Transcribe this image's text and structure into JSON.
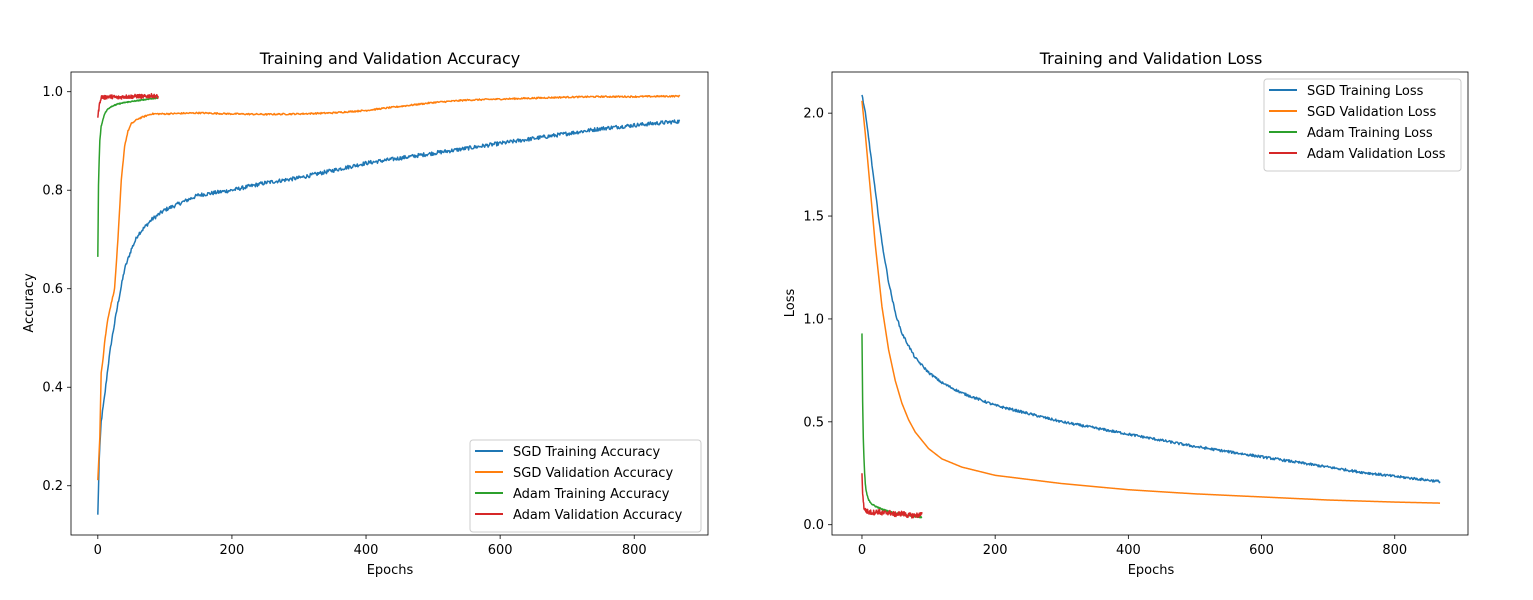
{
  "colors": {
    "sgd_train": "#1f77b4",
    "sgd_val": "#ff7f0e",
    "adam_train": "#2ca02c",
    "adam_val": "#d62728"
  },
  "chart_data": [
    {
      "type": "line",
      "title": "Training and Validation Accuracy",
      "xlabel": "Epochs",
      "ylabel": "Accuracy",
      "xlim": [
        -40,
        910
      ],
      "ylim": [
        0.1,
        1.04
      ],
      "xticks": [
        0,
        200,
        400,
        600,
        800
      ],
      "yticks": [
        0.2,
        0.4,
        0.6,
        0.8,
        1.0
      ],
      "xtick_labels": [
        "0",
        "200",
        "400",
        "600",
        "800"
      ],
      "ytick_labels": [
        "0.2",
        "0.4",
        "0.6",
        "0.8",
        "1.0"
      ],
      "grid": false,
      "legend_position": "lower-right",
      "series": [
        {
          "name": "SGD Training Accuracy",
          "color": "#1f77b4",
          "x": [
            0,
            2,
            5,
            10,
            15,
            20,
            30,
            40,
            50,
            60,
            80,
            100,
            150,
            200,
            250,
            300,
            350,
            400,
            450,
            500,
            550,
            600,
            650,
            700,
            750,
            800,
            868
          ],
          "y": [
            0.14,
            0.25,
            0.33,
            0.38,
            0.44,
            0.49,
            0.57,
            0.64,
            0.68,
            0.71,
            0.74,
            0.76,
            0.79,
            0.8,
            0.815,
            0.825,
            0.84,
            0.855,
            0.865,
            0.875,
            0.885,
            0.895,
            0.905,
            0.915,
            0.925,
            0.932,
            0.94
          ],
          "noise": 0.004
        },
        {
          "name": "SGD Validation Accuracy",
          "color": "#ff7f0e",
          "x": [
            0,
            3,
            5,
            8,
            10,
            15,
            20,
            25,
            30,
            35,
            40,
            45,
            50,
            60,
            70,
            80,
            100,
            150,
            200,
            250,
            300,
            350,
            400,
            450,
            500,
            550,
            600,
            650,
            700,
            750,
            800,
            868
          ],
          "y": [
            0.21,
            0.3,
            0.43,
            0.46,
            0.49,
            0.54,
            0.57,
            0.6,
            0.7,
            0.82,
            0.89,
            0.92,
            0.935,
            0.945,
            0.95,
            0.955,
            0.955,
            0.957,
            0.955,
            0.954,
            0.955,
            0.957,
            0.962,
            0.97,
            0.978,
            0.983,
            0.985,
            0.987,
            0.989,
            0.99,
            0.99,
            0.991
          ],
          "noise": 0.0015
        },
        {
          "name": "Adam Training Accuracy",
          "color": "#2ca02c",
          "x": [
            0,
            1,
            2,
            3,
            5,
            8,
            10,
            15,
            20,
            30,
            40,
            50,
            60,
            70,
            80,
            90
          ],
          "y": [
            0.665,
            0.81,
            0.86,
            0.9,
            0.93,
            0.945,
            0.955,
            0.965,
            0.97,
            0.975,
            0.978,
            0.98,
            0.982,
            0.984,
            0.986,
            0.987
          ],
          "noise": 0.001
        },
        {
          "name": "Adam Validation Accuracy",
          "color": "#d62728",
          "x": [
            0,
            2,
            4,
            6,
            10,
            15,
            20,
            30,
            40,
            50,
            60,
            70,
            80,
            90
          ],
          "y": [
            0.948,
            0.97,
            0.985,
            0.99,
            0.988,
            0.99,
            0.99,
            0.988,
            0.99,
            0.99,
            0.991,
            0.99,
            0.992,
            0.99
          ],
          "noise": 0.004
        }
      ]
    },
    {
      "type": "line",
      "title": "Training and Validation Loss",
      "xlabel": "Epochs",
      "ylabel": "Loss",
      "xlim": [
        -45,
        910
      ],
      "ylim": [
        -0.05,
        2.2
      ],
      "xticks": [
        0,
        200,
        400,
        600,
        800
      ],
      "yticks": [
        0.0,
        0.5,
        1.0,
        1.5,
        2.0
      ],
      "xtick_labels": [
        "0",
        "200",
        "400",
        "600",
        "800"
      ],
      "ytick_labels": [
        "0.0",
        "0.5",
        "1.0",
        "1.5",
        "2.0"
      ],
      "grid": false,
      "legend_position": "upper-right",
      "series": [
        {
          "name": "SGD Training Loss",
          "color": "#1f77b4",
          "x": [
            0,
            5,
            10,
            20,
            30,
            40,
            50,
            60,
            80,
            100,
            120,
            150,
            200,
            250,
            300,
            350,
            400,
            450,
            500,
            550,
            600,
            650,
            700,
            750,
            800,
            868
          ],
          "y": [
            2.09,
            2.0,
            1.88,
            1.62,
            1.37,
            1.18,
            1.03,
            0.93,
            0.81,
            0.74,
            0.69,
            0.64,
            0.58,
            0.54,
            0.5,
            0.47,
            0.44,
            0.41,
            0.38,
            0.355,
            0.33,
            0.305,
            0.28,
            0.255,
            0.235,
            0.21
          ],
          "noise": 0.006
        },
        {
          "name": "SGD Validation Loss",
          "color": "#ff7f0e",
          "x": [
            0,
            5,
            10,
            20,
            30,
            40,
            50,
            60,
            70,
            80,
            100,
            120,
            150,
            200,
            250,
            300,
            350,
            400,
            450,
            500,
            600,
            700,
            800,
            868
          ],
          "y": [
            2.06,
            1.9,
            1.72,
            1.36,
            1.06,
            0.85,
            0.7,
            0.59,
            0.51,
            0.45,
            0.37,
            0.32,
            0.28,
            0.24,
            0.22,
            0.2,
            0.185,
            0.17,
            0.16,
            0.15,
            0.135,
            0.12,
            0.11,
            0.105
          ],
          "noise": 0.0
        },
        {
          "name": "Adam Training Loss",
          "color": "#2ca02c",
          "x": [
            0,
            1,
            2,
            3,
            4,
            5,
            6,
            8,
            10,
            15,
            20,
            30,
            40,
            50,
            60,
            70,
            80,
            90
          ],
          "y": [
            0.93,
            0.6,
            0.42,
            0.32,
            0.25,
            0.2,
            0.17,
            0.14,
            0.12,
            0.1,
            0.09,
            0.075,
            0.065,
            0.055,
            0.05,
            0.045,
            0.04,
            0.035
          ],
          "noise": 0.003
        },
        {
          "name": "Adam Validation Loss",
          "color": "#d62728",
          "x": [
            0,
            1,
            2,
            3,
            5,
            8,
            10,
            15,
            20,
            25,
            30,
            40,
            50,
            60,
            70,
            80,
            90
          ],
          "y": [
            0.245,
            0.16,
            0.11,
            0.085,
            0.07,
            0.065,
            0.06,
            0.06,
            0.06,
            0.065,
            0.055,
            0.06,
            0.05,
            0.055,
            0.045,
            0.045,
            0.05
          ],
          "noise": 0.012
        }
      ]
    }
  ]
}
